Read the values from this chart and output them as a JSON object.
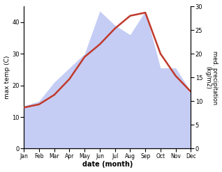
{
  "months": [
    "Jan",
    "Feb",
    "Mar",
    "Apr",
    "May",
    "Jun",
    "Jul",
    "Aug",
    "Sep",
    "Oct",
    "Nov",
    "Dec"
  ],
  "temp": [
    13,
    14,
    17,
    22,
    29,
    33,
    38,
    42,
    43,
    30,
    23,
    18
  ],
  "precip": [
    9,
    10,
    14,
    17,
    20,
    29,
    26,
    24,
    29,
    17,
    17,
    12
  ],
  "temp_color": "#c0392b",
  "precip_fill_color": "#c5cdf5",
  "precip_edge_color": "#b0baf0",
  "ylabel_left": "max temp (C)",
  "ylabel_right": "med. precipitation\n(kg/m2)",
  "xlabel": "date (month)",
  "ylim_left": [
    0,
    45
  ],
  "ylim_right": [
    0,
    30
  ],
  "yticks_left": [
    0,
    10,
    20,
    30,
    40
  ],
  "yticks_right": [
    0,
    5,
    10,
    15,
    20,
    25,
    30
  ],
  "temp_lw": 1.8
}
